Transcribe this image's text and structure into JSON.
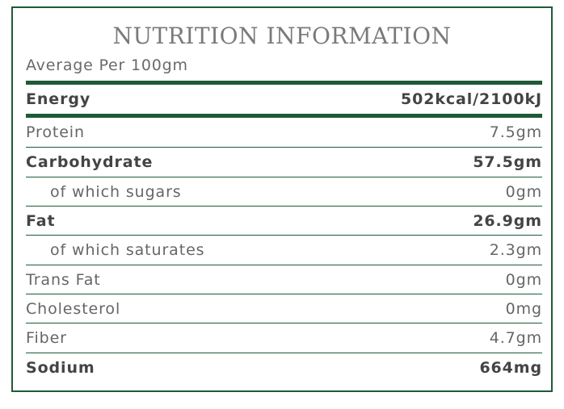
{
  "panel": {
    "title": "NUTRITION INFORMATION",
    "subtitle": "Average Per 100gm"
  },
  "energy": {
    "label": "Energy",
    "value": "502kcal/2100kJ"
  },
  "rows": [
    {
      "label": "Protein",
      "value": "7.5gm"
    },
    {
      "label": "Carbohydrate",
      "value": "57.5gm"
    },
    {
      "label": "of which sugars",
      "value": "0gm"
    },
    {
      "label": "Fat",
      "value": "26.9gm"
    },
    {
      "label": "of which saturates",
      "value": "2.3gm"
    },
    {
      "label": "Trans Fat",
      "value": "0gm"
    },
    {
      "label": "Cholesterol",
      "value": "0mg"
    },
    {
      "label": "Fiber",
      "value": "4.7gm"
    },
    {
      "label": "Sodium",
      "value": "664mg"
    }
  ],
  "colors": {
    "border_green": "#1f5a37",
    "text_gray": "#666666"
  }
}
